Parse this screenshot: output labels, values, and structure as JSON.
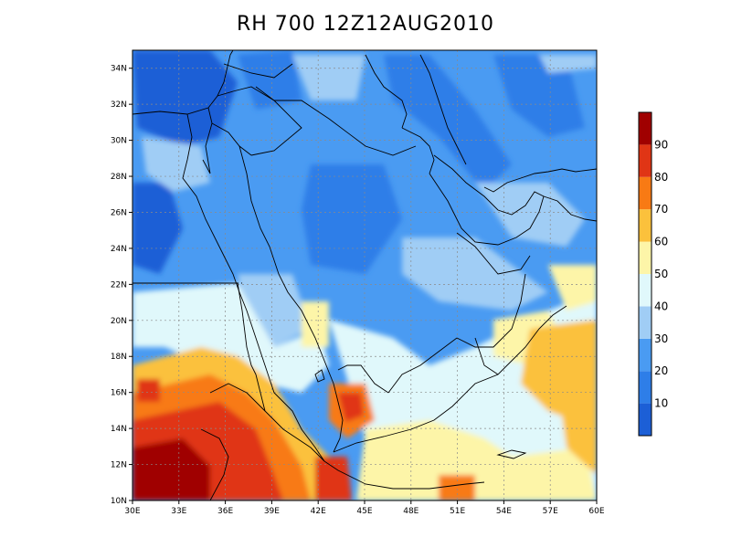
{
  "title": "RH 700 12Z12AUG2010",
  "map": {
    "lat_labels": [
      "34N",
      "32N",
      "30N",
      "28N",
      "26N",
      "24N",
      "22N",
      "20N",
      "18N",
      "16N",
      "14N",
      "12N",
      "10N"
    ],
    "lon_labels": [
      "30E",
      "33E",
      "36E",
      "39E",
      "42E",
      "45E",
      "48E",
      "51E",
      "54E",
      "57E",
      "60E"
    ],
    "lat_range": [
      10,
      35
    ],
    "lon_range": [
      30,
      60
    ]
  },
  "colorbar": {
    "labels": [
      "10",
      "20",
      "30",
      "40",
      "50",
      "60",
      "70",
      "80",
      "90"
    ],
    "colors": [
      "#1c5fd6",
      "#2e7ee8",
      "#4a9bf2",
      "#a0cdf5",
      "#e0f8fb",
      "#fdf5a8",
      "#fbc13c",
      "#f87a14",
      "#e03515",
      "#a00000"
    ]
  }
}
